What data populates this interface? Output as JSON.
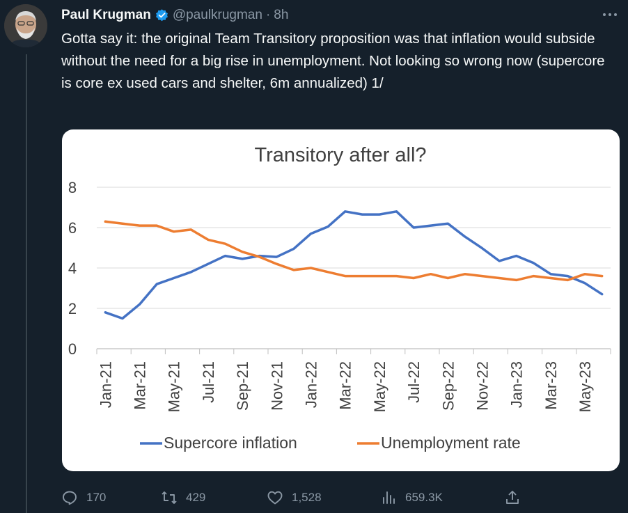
{
  "author": {
    "name": "Paul Krugman",
    "handle": "@paulkrugman",
    "separator": "·",
    "time": "8h"
  },
  "tweet_text": "Gotta say it: the original Team Transitory proposition was that inflation would subside without the need for a big rise in unemployment. Not looking so wrong now (supercore is core ex used cars and shelter, 6m annualized) 1/",
  "actions": {
    "replies": "170",
    "retweets": "429",
    "likes": "1,528",
    "views": "659.3K"
  },
  "colors": {
    "supercore": "#4472c4",
    "unemployment": "#ed7d31",
    "verified": "#1d9bf0"
  },
  "chart_data": {
    "type": "line",
    "title": "Transitory after all?",
    "xlabel": "",
    "ylabel": "",
    "ylim": [
      0,
      8
    ],
    "yticks": [
      "0",
      "2",
      "4",
      "6",
      "8"
    ],
    "grid": true,
    "legend": "bottom",
    "x": [
      "Jan-21",
      "Feb-21",
      "Mar-21",
      "Apr-21",
      "May-21",
      "Jun-21",
      "Jul-21",
      "Aug-21",
      "Sep-21",
      "Oct-21",
      "Nov-21",
      "Dec-21",
      "Jan-22",
      "Feb-22",
      "Mar-22",
      "Apr-22",
      "May-22",
      "Jun-22",
      "Jul-22",
      "Aug-22",
      "Sep-22",
      "Oct-22",
      "Nov-22",
      "Dec-22",
      "Jan-23",
      "Feb-23",
      "Mar-23",
      "Apr-23",
      "May-23",
      "Jun-23"
    ],
    "x_tick_labels": [
      "Jan-21",
      "Mar-21",
      "May-21",
      "Jul-21",
      "Sep-21",
      "Nov-21",
      "Jan-22",
      "Mar-22",
      "May-22",
      "Jul-22",
      "Sep-22",
      "Nov-22",
      "Jan-23",
      "Mar-23",
      "May-23"
    ],
    "series": [
      {
        "name": "Supercore inflation",
        "values": [
          1.8,
          1.5,
          2.2,
          3.2,
          3.5,
          3.8,
          4.2,
          4.6,
          4.45,
          4.6,
          4.55,
          4.95,
          5.7,
          6.05,
          6.8,
          6.65,
          6.65,
          6.8,
          6.0,
          6.1,
          6.2,
          5.55,
          4.98,
          4.35,
          4.6,
          4.25,
          3.7,
          3.6,
          3.25,
          2.7
        ]
      },
      {
        "name": "Unemployment rate",
        "values": [
          6.3,
          6.2,
          6.1,
          6.1,
          5.8,
          5.9,
          5.4,
          5.2,
          4.8,
          4.55,
          4.2,
          3.9,
          4.0,
          3.8,
          3.6,
          3.6,
          3.6,
          3.6,
          3.5,
          3.7,
          3.5,
          3.7,
          3.6,
          3.5,
          3.4,
          3.6,
          3.5,
          3.4,
          3.7,
          3.6
        ]
      }
    ]
  }
}
